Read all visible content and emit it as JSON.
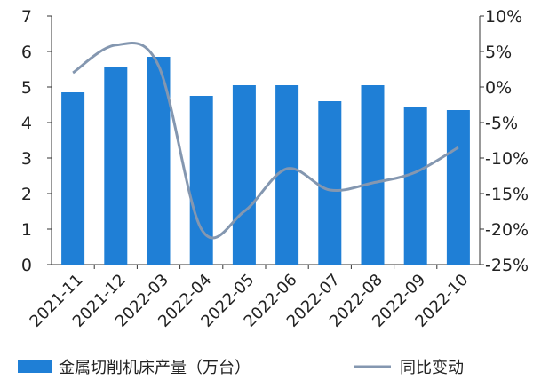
{
  "chart_data": {
    "type": "bar",
    "categories": [
      "2021-11",
      "2021-12",
      "2022-03",
      "2022-04",
      "2022-05",
      "2022-06",
      "2022-07",
      "2022-08",
      "2022-09",
      "2022-10"
    ],
    "series": [
      {
        "name": "金属切削机床产量（万台）",
        "type": "bar",
        "axis": "left",
        "color": "#1f7fd6",
        "values": [
          4.85,
          5.55,
          5.85,
          4.75,
          5.05,
          5.05,
          4.6,
          5.05,
          4.45,
          4.35
        ]
      },
      {
        "name": "同比变动",
        "type": "line",
        "axis": "right",
        "color": "#8497b0",
        "values": [
          2.0,
          5.9,
          3.0,
          -20.0,
          -17.5,
          -11.5,
          -14.5,
          -13.5,
          -12.0,
          -8.5
        ]
      }
    ],
    "y_left": {
      "min": 0,
      "max": 7,
      "ticks": [
        0,
        1,
        2,
        3,
        4,
        5,
        6,
        7
      ]
    },
    "y_right": {
      "min": -25,
      "max": 10,
      "ticks": [
        "10%",
        "5%",
        "0%",
        "-5%",
        "-10%",
        "-15%",
        "-20%",
        "-25%"
      ]
    },
    "grid": false,
    "legend": "bottom"
  }
}
